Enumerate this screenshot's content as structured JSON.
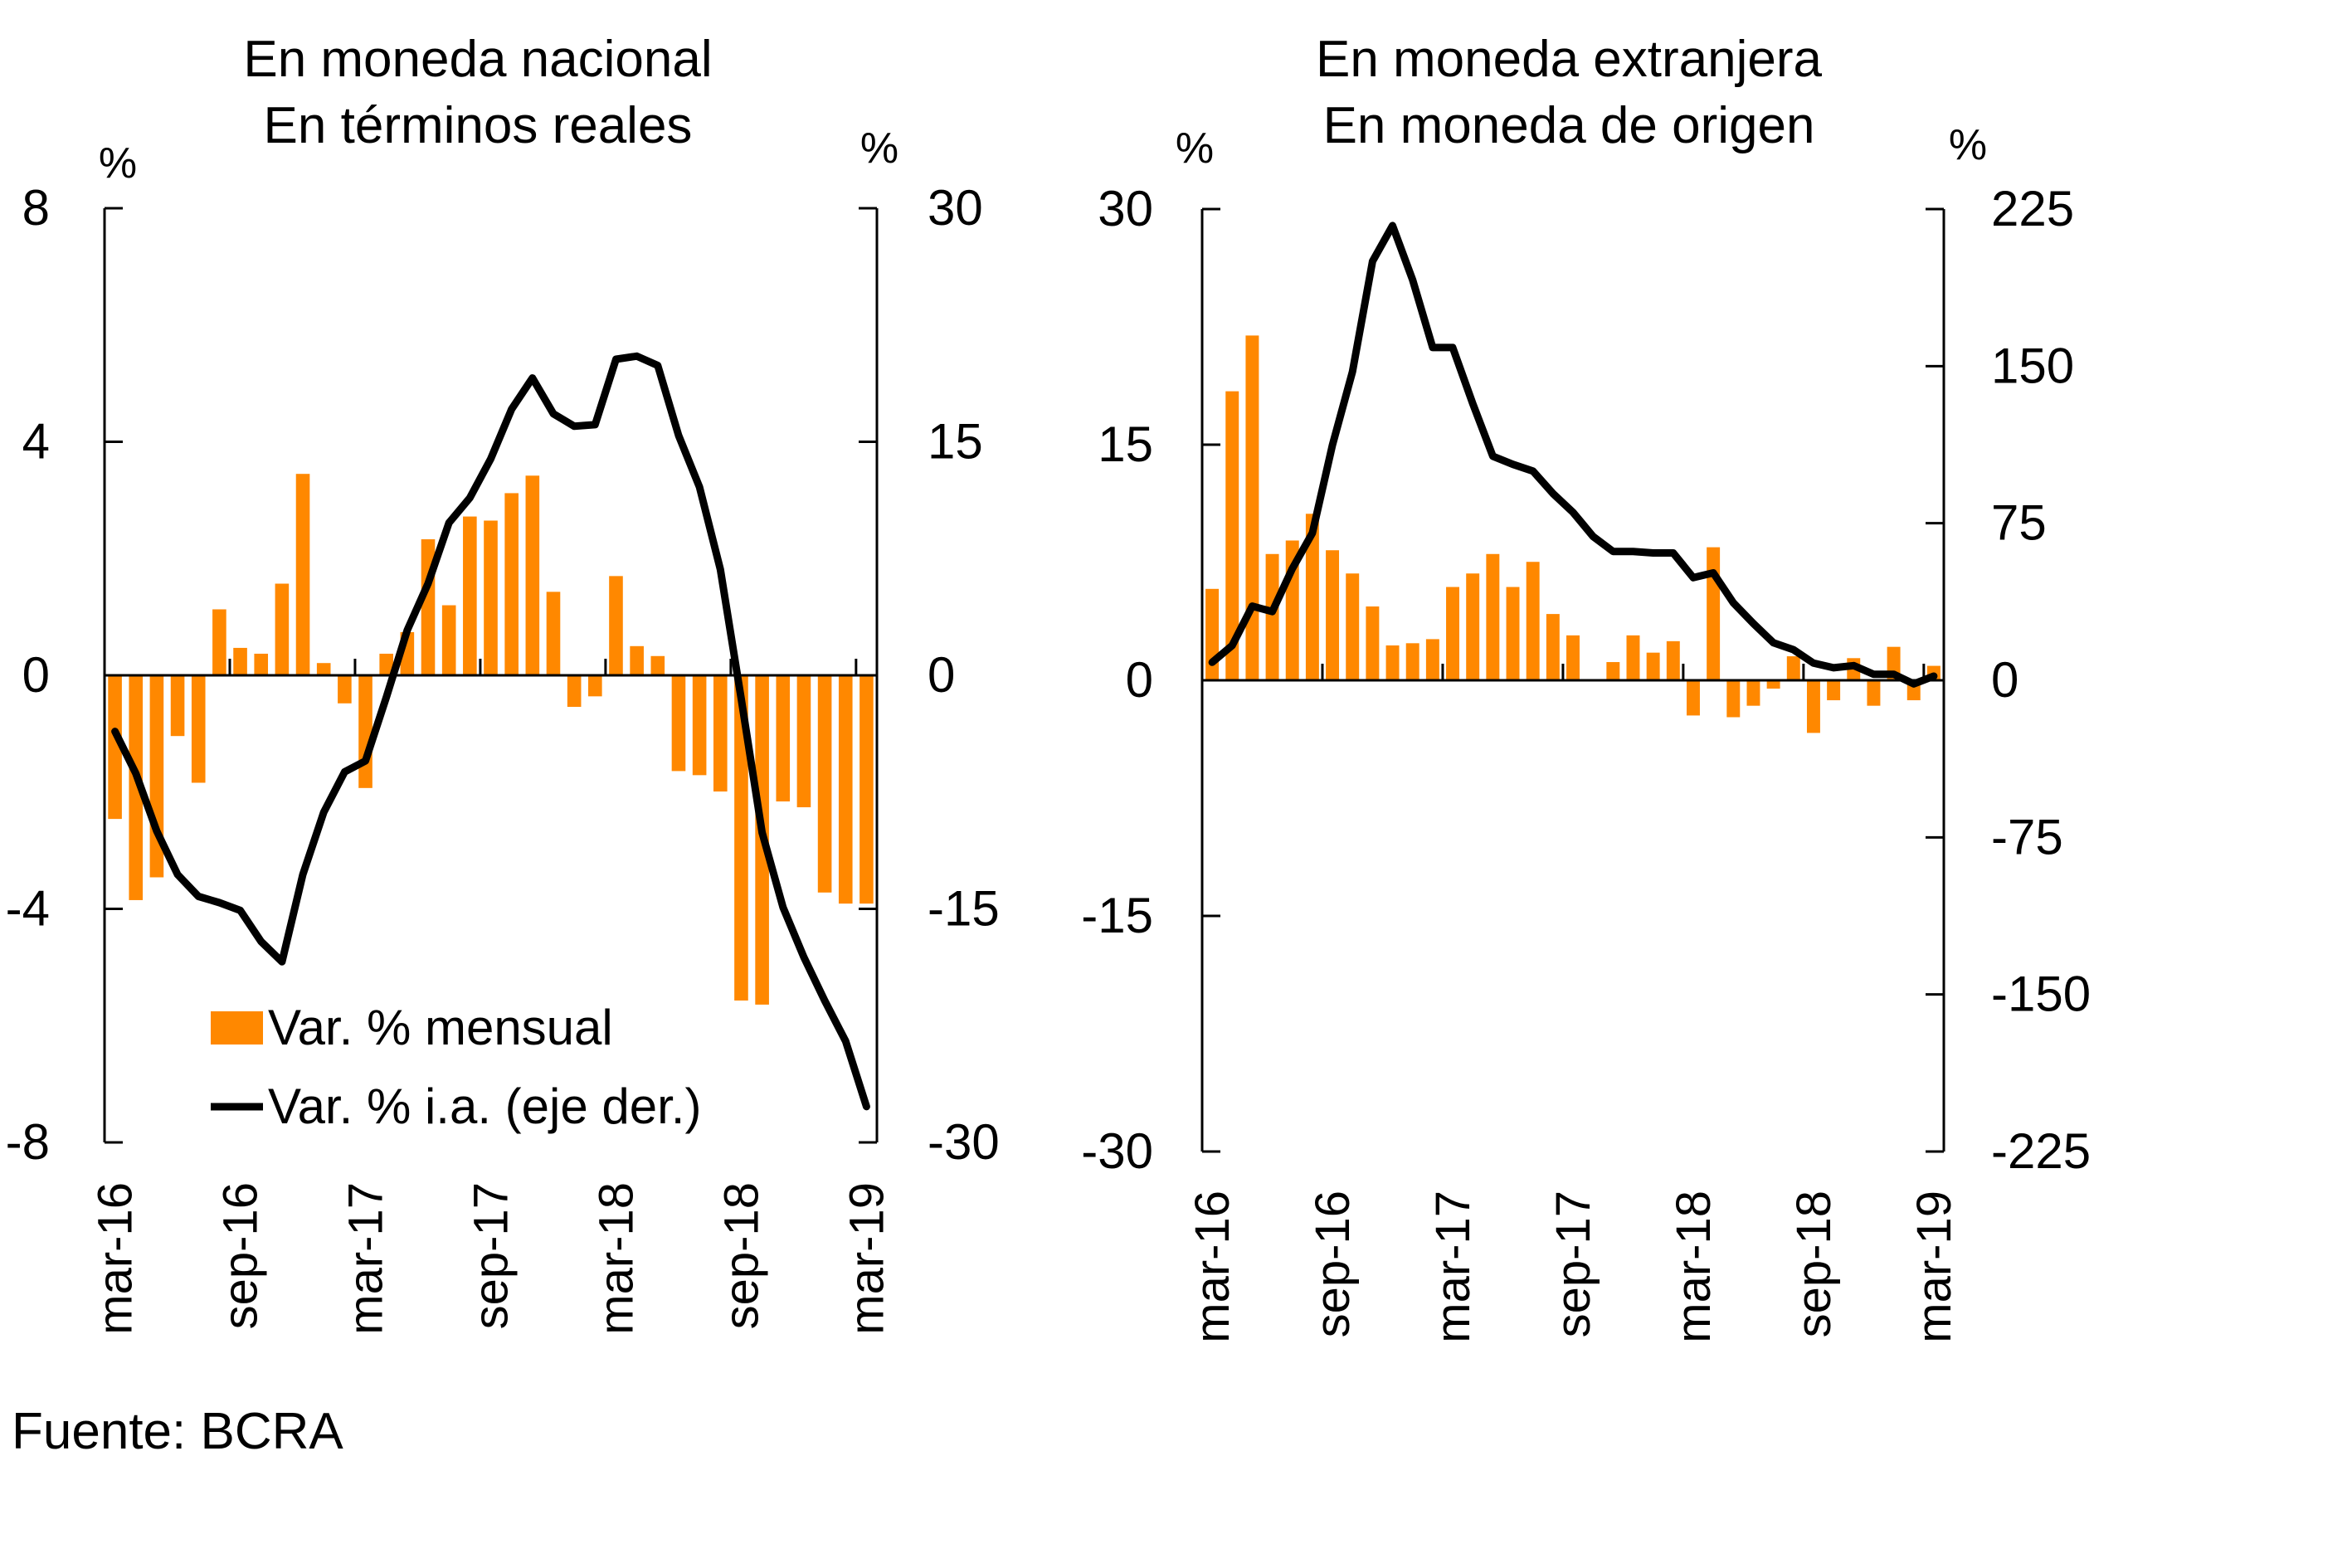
{
  "source": "Fuente: BCRA",
  "colors": {
    "bars": "#ff8800",
    "line": "#000000",
    "axis": "#000000"
  },
  "chart_data": [
    {
      "type": "bar+line",
      "title": [
        "En moneda nacional",
        "En términos reales"
      ],
      "left_unit": "%",
      "right_unit": "%",
      "left_axis": {
        "ylim": [
          -8,
          8
        ],
        "ticks": [
          8,
          4,
          0,
          -4,
          -8
        ],
        "tick_labels": [
          "8",
          "4",
          "0",
          "-4",
          "-8"
        ]
      },
      "right_axis": {
        "ylim": [
          -30,
          30
        ],
        "ticks": [
          30,
          15,
          0,
          -15,
          -30
        ],
        "tick_labels": [
          "30",
          "15",
          "0",
          "-15",
          "-30"
        ]
      },
      "x_tick_labels": [
        "mar-16",
        "sep-16",
        "mar-17",
        "sep-17",
        "mar-18",
        "sep-18",
        "mar-19"
      ],
      "x_tick_every": 6,
      "n_months": 37,
      "legend": {
        "position": "bottom-left",
        "entries": [
          "Var. % mensual",
          "Var. % i.a. (eje der.)"
        ]
      },
      "series": [
        {
          "name": "Var. % mensual",
          "kind": "bar",
          "axis": "left",
          "values": [
            -2.46,
            -3.85,
            -3.46,
            -1.04,
            -1.84,
            1.13,
            0.47,
            0.37,
            1.57,
            3.45,
            0.21,
            -0.48,
            -1.93,
            0.37,
            0.74,
            2.33,
            1.2,
            2.72,
            2.65,
            3.12,
            3.42,
            1.43,
            -0.54,
            -0.36,
            1.7,
            0.5,
            0.33,
            -1.64,
            -1.71,
            -1.99,
            -5.57,
            -5.64,
            -2.16,
            -2.26,
            -3.72,
            -3.91,
            -3.91
          ]
        },
        {
          "name": "Var. % i.a. (eje der.)",
          "kind": "line",
          "axis": "right",
          "values": [
            -3.6,
            -6.3,
            -10.0,
            -12.8,
            -14.2,
            -14.6,
            -15.1,
            -17.1,
            -18.4,
            -12.8,
            -8.8,
            -6.2,
            -5.5,
            -1.4,
            2.9,
            5.9,
            9.8,
            11.4,
            13.9,
            17.1,
            19.1,
            16.8,
            16.0,
            16.1,
            20.3,
            20.5,
            19.9,
            15.4,
            12.1,
            6.8,
            -1.5,
            -10.1,
            -14.9,
            -18.1,
            -20.9,
            -23.5,
            -27.7
          ]
        }
      ]
    },
    {
      "type": "bar+line",
      "title": [
        "En moneda extranjera",
        "En moneda de origen"
      ],
      "left_unit": "%",
      "right_unit": "%",
      "left_axis": {
        "ylim": [
          -30,
          30
        ],
        "ticks": [
          30,
          15,
          0,
          -15,
          -30
        ],
        "tick_labels": [
          "30",
          "15",
          "0",
          "-15",
          "-30"
        ]
      },
      "right_axis": {
        "ylim": [
          -225,
          225
        ],
        "ticks": [
          225,
          150,
          75,
          0,
          -75,
          -150,
          -225
        ],
        "tick_labels": [
          "225",
          "150",
          "75",
          "0",
          "-75",
          "-150",
          "-225"
        ]
      },
      "x_tick_labels": [
        "mar-16",
        "sep-16",
        "mar-17",
        "sep-17",
        "mar-18",
        "sep-18",
        "mar-19"
      ],
      "x_tick_every": 6,
      "n_months": 37,
      "series": [
        {
          "name": "Var. % mensual",
          "kind": "bar",
          "axis": "left",
          "values": [
            5.82,
            18.4,
            21.95,
            8.04,
            8.9,
            10.6,
            8.28,
            6.8,
            4.7,
            2.22,
            2.36,
            2.62,
            5.94,
            6.8,
            8.04,
            5.94,
            7.54,
            4.22,
            2.86,
            0.05,
            1.16,
            2.86,
            1.76,
            2.49,
            -2.24,
            8.47,
            -2.35,
            -1.62,
            -0.53,
            1.53,
            -3.35,
            -1.27,
            1.41,
            -1.62,
            2.13,
            -1.27,
            0.92
          ]
        },
        {
          "name": "Var. % i.a. (eje der.)",
          "kind": "line",
          "axis": "right",
          "values": [
            8.6,
            16.6,
            35.4,
            32.8,
            53.3,
            70.3,
            112.4,
            147.3,
            200.1,
            217.1,
            191.2,
            158.9,
            158.9,
            132.1,
            107.0,
            103.1,
            99.9,
            89.2,
            80.2,
            68.7,
            61.5,
            61.5,
            60.8,
            60.8,
            49.0,
            51.3,
            37.0,
            27.1,
            17.9,
            14.6,
            8.2,
            6.0,
            7.0,
            2.9,
            2.9,
            -1.7,
            2.0
          ]
        }
      ]
    }
  ]
}
